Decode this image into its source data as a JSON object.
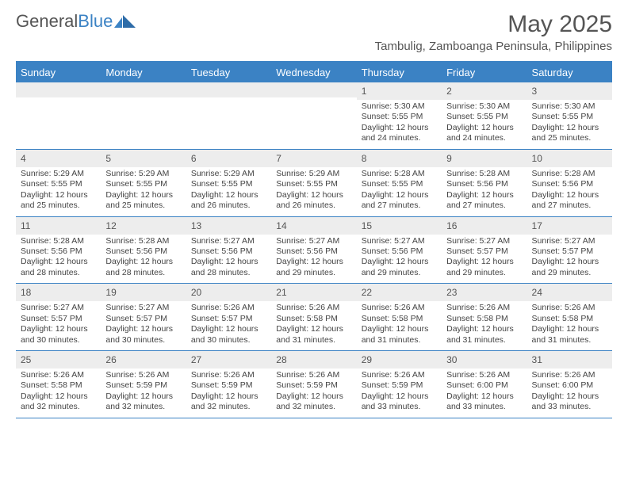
{
  "brand": {
    "name1": "General",
    "name2": "Blue"
  },
  "header": {
    "month_title": "May 2025",
    "location": "Tambulig, Zamboanga Peninsula, Philippines"
  },
  "colors": {
    "accent": "#3b82c4",
    "header_text": "#555555",
    "cell_text": "#444444",
    "daynum_bg": "#ededed",
    "background": "#ffffff"
  },
  "calendar": {
    "days_of_week": [
      "Sunday",
      "Monday",
      "Tuesday",
      "Wednesday",
      "Thursday",
      "Friday",
      "Saturday"
    ],
    "weeks": [
      [
        null,
        null,
        null,
        null,
        {
          "n": "1",
          "sunrise": "5:30 AM",
          "sunset": "5:55 PM",
          "daylight": "12 hours and 24 minutes."
        },
        {
          "n": "2",
          "sunrise": "5:30 AM",
          "sunset": "5:55 PM",
          "daylight": "12 hours and 24 minutes."
        },
        {
          "n": "3",
          "sunrise": "5:30 AM",
          "sunset": "5:55 PM",
          "daylight": "12 hours and 25 minutes."
        }
      ],
      [
        {
          "n": "4",
          "sunrise": "5:29 AM",
          "sunset": "5:55 PM",
          "daylight": "12 hours and 25 minutes."
        },
        {
          "n": "5",
          "sunrise": "5:29 AM",
          "sunset": "5:55 PM",
          "daylight": "12 hours and 25 minutes."
        },
        {
          "n": "6",
          "sunrise": "5:29 AM",
          "sunset": "5:55 PM",
          "daylight": "12 hours and 26 minutes."
        },
        {
          "n": "7",
          "sunrise": "5:29 AM",
          "sunset": "5:55 PM",
          "daylight": "12 hours and 26 minutes."
        },
        {
          "n": "8",
          "sunrise": "5:28 AM",
          "sunset": "5:55 PM",
          "daylight": "12 hours and 27 minutes."
        },
        {
          "n": "9",
          "sunrise": "5:28 AM",
          "sunset": "5:56 PM",
          "daylight": "12 hours and 27 minutes."
        },
        {
          "n": "10",
          "sunrise": "5:28 AM",
          "sunset": "5:56 PM",
          "daylight": "12 hours and 27 minutes."
        }
      ],
      [
        {
          "n": "11",
          "sunrise": "5:28 AM",
          "sunset": "5:56 PM",
          "daylight": "12 hours and 28 minutes."
        },
        {
          "n": "12",
          "sunrise": "5:28 AM",
          "sunset": "5:56 PM",
          "daylight": "12 hours and 28 minutes."
        },
        {
          "n": "13",
          "sunrise": "5:27 AM",
          "sunset": "5:56 PM",
          "daylight": "12 hours and 28 minutes."
        },
        {
          "n": "14",
          "sunrise": "5:27 AM",
          "sunset": "5:56 PM",
          "daylight": "12 hours and 29 minutes."
        },
        {
          "n": "15",
          "sunrise": "5:27 AM",
          "sunset": "5:56 PM",
          "daylight": "12 hours and 29 minutes."
        },
        {
          "n": "16",
          "sunrise": "5:27 AM",
          "sunset": "5:57 PM",
          "daylight": "12 hours and 29 minutes."
        },
        {
          "n": "17",
          "sunrise": "5:27 AM",
          "sunset": "5:57 PM",
          "daylight": "12 hours and 29 minutes."
        }
      ],
      [
        {
          "n": "18",
          "sunrise": "5:27 AM",
          "sunset": "5:57 PM",
          "daylight": "12 hours and 30 minutes."
        },
        {
          "n": "19",
          "sunrise": "5:27 AM",
          "sunset": "5:57 PM",
          "daylight": "12 hours and 30 minutes."
        },
        {
          "n": "20",
          "sunrise": "5:26 AM",
          "sunset": "5:57 PM",
          "daylight": "12 hours and 30 minutes."
        },
        {
          "n": "21",
          "sunrise": "5:26 AM",
          "sunset": "5:58 PM",
          "daylight": "12 hours and 31 minutes."
        },
        {
          "n": "22",
          "sunrise": "5:26 AM",
          "sunset": "5:58 PM",
          "daylight": "12 hours and 31 minutes."
        },
        {
          "n": "23",
          "sunrise": "5:26 AM",
          "sunset": "5:58 PM",
          "daylight": "12 hours and 31 minutes."
        },
        {
          "n": "24",
          "sunrise": "5:26 AM",
          "sunset": "5:58 PM",
          "daylight": "12 hours and 31 minutes."
        }
      ],
      [
        {
          "n": "25",
          "sunrise": "5:26 AM",
          "sunset": "5:58 PM",
          "daylight": "12 hours and 32 minutes."
        },
        {
          "n": "26",
          "sunrise": "5:26 AM",
          "sunset": "5:59 PM",
          "daylight": "12 hours and 32 minutes."
        },
        {
          "n": "27",
          "sunrise": "5:26 AM",
          "sunset": "5:59 PM",
          "daylight": "12 hours and 32 minutes."
        },
        {
          "n": "28",
          "sunrise": "5:26 AM",
          "sunset": "5:59 PM",
          "daylight": "12 hours and 32 minutes."
        },
        {
          "n": "29",
          "sunrise": "5:26 AM",
          "sunset": "5:59 PM",
          "daylight": "12 hours and 33 minutes."
        },
        {
          "n": "30",
          "sunrise": "5:26 AM",
          "sunset": "6:00 PM",
          "daylight": "12 hours and 33 minutes."
        },
        {
          "n": "31",
          "sunrise": "5:26 AM",
          "sunset": "6:00 PM",
          "daylight": "12 hours and 33 minutes."
        }
      ]
    ],
    "labels": {
      "sunrise": "Sunrise: ",
      "sunset": "Sunset: ",
      "daylight": "Daylight: "
    }
  }
}
